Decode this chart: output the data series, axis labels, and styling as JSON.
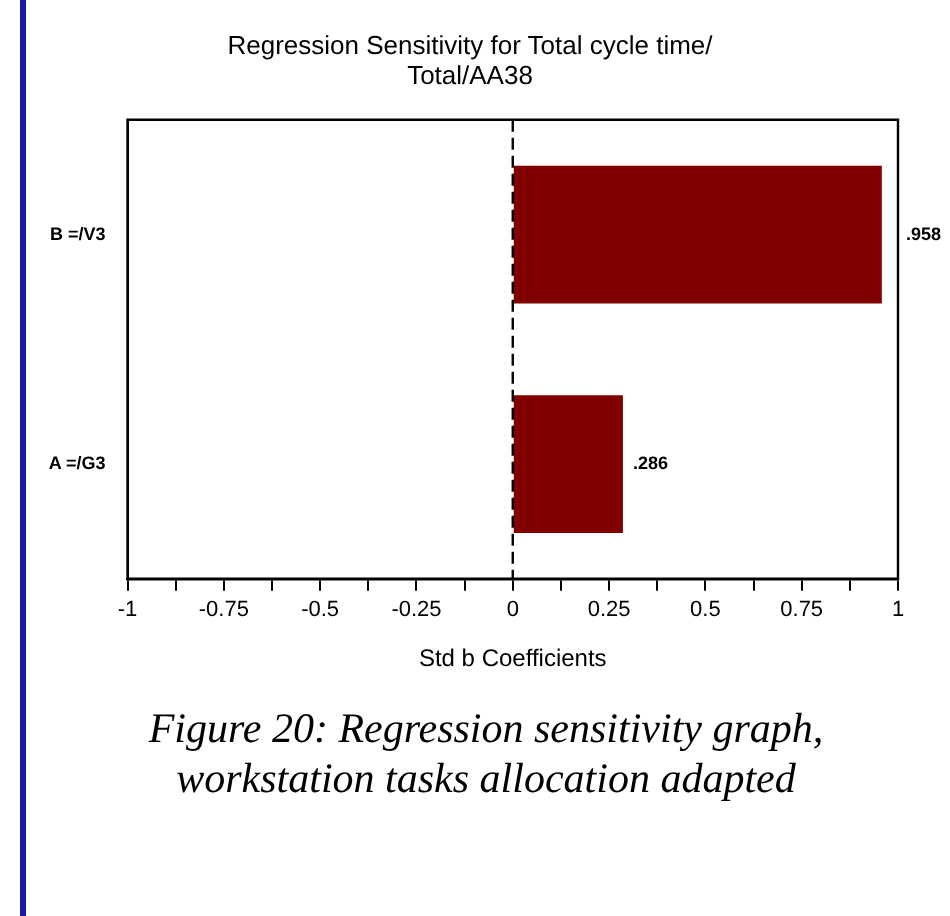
{
  "chart_data": {
    "type": "bar",
    "orientation": "horizontal",
    "title": "Regression Sensitivity for Total cycle time/\nTotal/AA38",
    "xlabel": "Std b Coefficients",
    "categories": [
      "B =/V3",
      "A =/G3"
    ],
    "values": [
      0.958,
      0.286
    ],
    "value_labels": [
      ".958",
      ".286"
    ],
    "color": "#800000",
    "xlim": [
      -1,
      1
    ],
    "xticks": [
      -1,
      {
        "value": -0.875,
        "label": null
      },
      -0.75,
      {
        "value": -0.625,
        "label": null
      },
      -0.5,
      {
        "value": -0.375,
        "label": null
      },
      -0.25,
      {
        "value": -0.125,
        "label": null
      },
      0,
      {
        "value": 0.125,
        "label": null
      },
      0.25,
      {
        "value": 0.375,
        "label": null
      },
      0.5,
      {
        "value": 0.625,
        "label": null
      },
      0.75,
      {
        "value": 0.875,
        "label": null
      },
      1
    ],
    "ref_lines": [
      {
        "axis": "x",
        "value": 0,
        "line_style": "dashed",
        "color": "#000000"
      }
    ],
    "grid": false,
    "legend": false,
    "annotations": [
      "Figure 20: Regression sensitivity graph, workstation tasks allocation adapted"
    ]
  }
}
